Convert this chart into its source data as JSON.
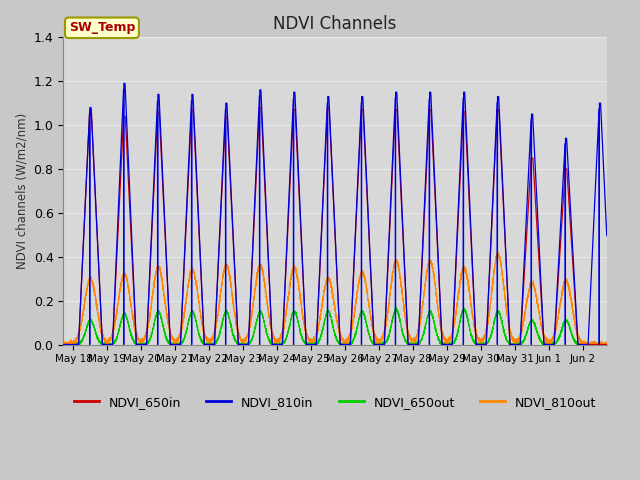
{
  "title": "NDVI Channels",
  "ylabel": "NDVI channels (W/m2/nm)",
  "ylim": [
    0.0,
    1.4
  ],
  "yticks": [
    0.0,
    0.2,
    0.4,
    0.6,
    0.8,
    1.0,
    1.2,
    1.4
  ],
  "colors": {
    "NDVI_650in": "#cc0000",
    "NDVI_810in": "#0000dd",
    "NDVI_650out": "#00cc00",
    "NDVI_810out": "#ff8800"
  },
  "fig_facecolor": "#c8c8c8",
  "ax_facecolor": "#d8d8d8",
  "sw_temp_label": "SW_Temp",
  "sw_temp_color": "#aa0000",
  "sw_temp_bg": "#ffffcc",
  "sw_temp_border": "#999900",
  "legend_labels": [
    "NDVI_650in",
    "NDVI_810in",
    "NDVI_650out",
    "NDVI_810out"
  ],
  "x_tick_labels": [
    "May 18",
    "May 19",
    "May 20",
    "May 21",
    "May 22",
    "May 23",
    "May 24",
    "May 25",
    "May 26",
    "May 27",
    "May 28",
    "May 29",
    "May 30",
    "May 31",
    "Jun 1",
    "Jun 2"
  ],
  "grid_color": "#e8e8e8",
  "grid_linewidth": 0.8,
  "n_days": 16
}
